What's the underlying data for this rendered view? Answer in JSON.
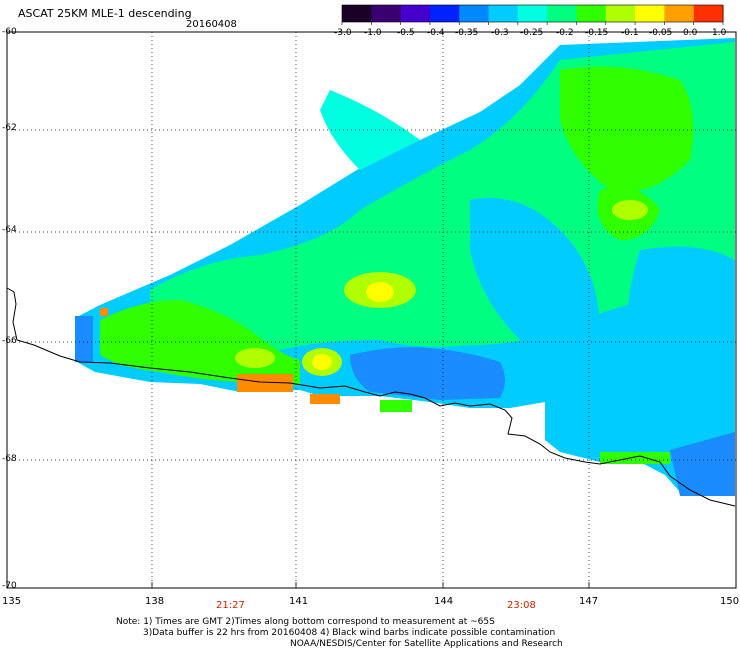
{
  "title": "ASCAT 25KM MLE-1 descending",
  "date": "20160408",
  "colorbar": {
    "labels": [
      "-3.0",
      "-1.0",
      "-0.5",
      "-0.4",
      "-0.35",
      "-0.3",
      "-0.25",
      "-0.2",
      "-0.15",
      "-0.1",
      "-0.05",
      "0.0",
      "1.0"
    ],
    "colors": [
      "#1a0026",
      "#3a0070",
      "#4400cc",
      "#0022ff",
      "#0088ff",
      "#00ccff",
      "#00ffe0",
      "#00ff80",
      "#30ff00",
      "#b0ff00",
      "#ffff00",
      "#ffa000",
      "#ff3000"
    ]
  },
  "lat_labels": [
    "-60",
    "-62",
    "-64",
    "-66",
    "-68",
    "-70"
  ],
  "lon_labels": [
    "135",
    "138",
    "141",
    "144",
    "147",
    "150"
  ],
  "time_labels": [
    "21:27",
    "23:08"
  ],
  "notes": {
    "line1": "Note: 1) Times are GMT 2)Times along bottom correspond to measurement at ~65S",
    "line2": "3)Data buffer is 22 hrs from 20160408 4) Black wind barbs indicate possible contamination",
    "line3": "NOAA/NESDIS/Center for Satellite Applications and Research"
  }
}
